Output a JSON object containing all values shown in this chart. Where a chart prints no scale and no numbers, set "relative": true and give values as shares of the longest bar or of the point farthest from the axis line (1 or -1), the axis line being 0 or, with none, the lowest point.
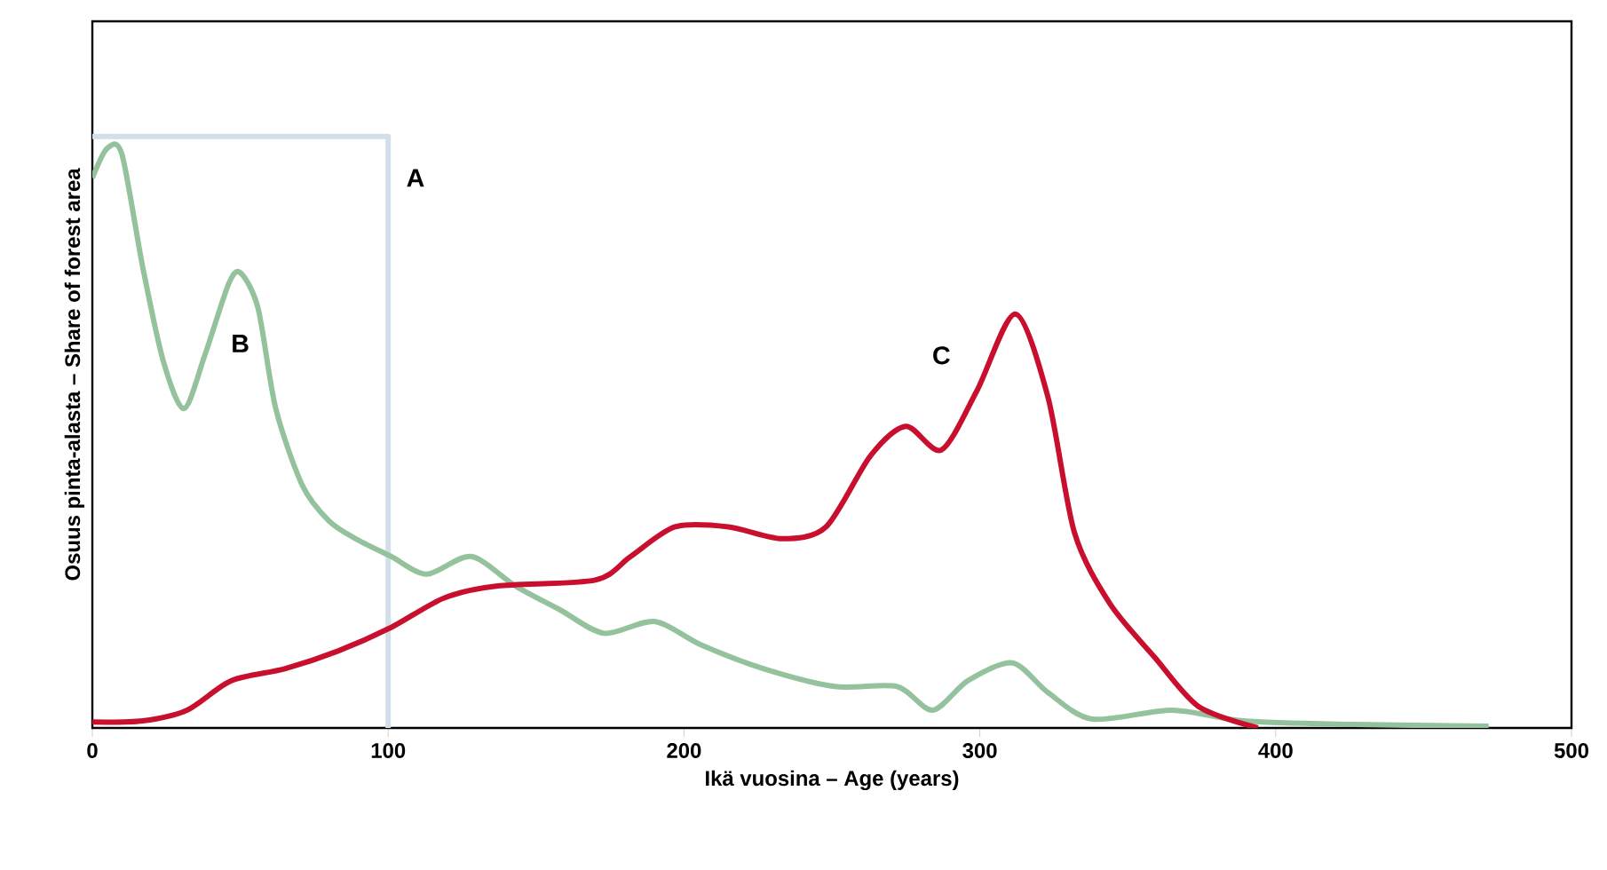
{
  "chart_data": {
    "type": "line",
    "xlabel": "Ikä vuosina – Age (years)",
    "ylabel": "Osuus pinta-alasta – Share of forest area",
    "relative": true,
    "xlim": [
      0,
      500
    ],
    "xticks": [
      0,
      100,
      200,
      300,
      400,
      500
    ],
    "series": [
      {
        "name": "A",
        "color": "#d3dfe8",
        "x": [
          0,
          100,
          100
        ],
        "values": [
          1,
          1,
          0
        ]
      },
      {
        "name": "B",
        "color": "#94c29c",
        "x": [
          0,
          5,
          10,
          17,
          24,
          31,
          38,
          46,
          50,
          56,
          62,
          71,
          80,
          89,
          101,
          113,
          128,
          143,
          158,
          173,
          190,
          206,
          227,
          251,
          272,
          284,
          296,
          311,
          323,
          338,
          365,
          389,
          425,
          472
        ],
        "values": [
          0.93,
          0.98,
          0.97,
          0.78,
          0.62,
          0.54,
          0.63,
          0.75,
          0.77,
          0.71,
          0.54,
          0.41,
          0.35,
          0.32,
          0.29,
          0.26,
          0.29,
          0.24,
          0.2,
          0.16,
          0.18,
          0.14,
          0.1,
          0.07,
          0.07,
          0.03,
          0.08,
          0.11,
          0.06,
          0.015,
          0.03,
          0.012,
          0.006,
          0.003
        ]
      },
      {
        "name": "C",
        "color": "#c8102e",
        "x": [
          0,
          17,
          32,
          47,
          65,
          83,
          101,
          119,
          137,
          170,
          182,
          197,
          215,
          233,
          248,
          263,
          275,
          287,
          299,
          312,
          323,
          332,
          344,
          359,
          374,
          394
        ],
        "values": [
          0.01,
          0.012,
          0.03,
          0.08,
          0.1,
          0.13,
          0.17,
          0.22,
          0.24,
          0.25,
          0.29,
          0.34,
          0.34,
          0.32,
          0.34,
          0.46,
          0.51,
          0.47,
          0.57,
          0.7,
          0.56,
          0.33,
          0.21,
          0.12,
          0.036,
          0
        ]
      }
    ]
  }
}
